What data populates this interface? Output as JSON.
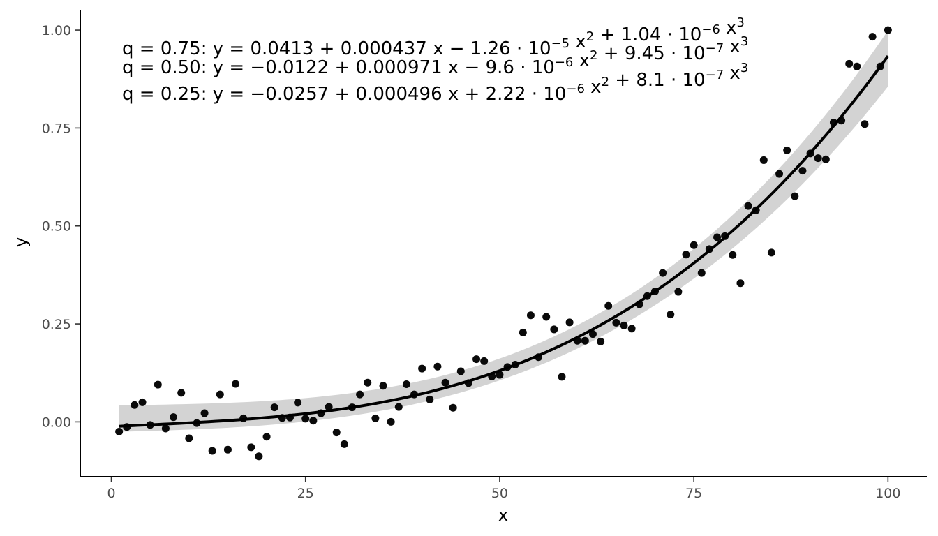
{
  "chart_data": {
    "type": "scatter",
    "title": "",
    "xlabel": "x",
    "ylabel": "y",
    "xlim": [
      -4,
      105
    ],
    "ylim": [
      -0.14,
      1.05
    ],
    "x_ticks": [
      0,
      25,
      50,
      75,
      100
    ],
    "x_tick_labels": [
      "0",
      "25",
      "50",
      "75",
      "100"
    ],
    "y_ticks": [
      0.0,
      0.25,
      0.5,
      0.75,
      1.0
    ],
    "y_tick_labels": [
      "0.00",
      "0.25",
      "0.50",
      "0.75",
      "1.00"
    ],
    "grid": false,
    "legend": "none",
    "colors": {
      "points": "#000000",
      "line": "#000000",
      "band": "#d3d3d3"
    },
    "annotations": [
      {
        "prefix": "q = 0.75: y = ",
        "terms": [
          {
            "c": "0.0413"
          },
          {
            "op": "+",
            "c": "0.000437",
            "v": " x"
          },
          {
            "op": "−",
            "c": "1.26",
            "exp10": "−5",
            "v": " x",
            "pow": "2"
          },
          {
            "op": "+",
            "c": "1.04",
            "exp10": "−6",
            "v": " x",
            "pow": "3"
          }
        ]
      },
      {
        "prefix": "q = 0.50: y = −",
        "terms": [
          {
            "c": "0.0122"
          },
          {
            "op": "+",
            "c": "0.000971",
            "v": " x"
          },
          {
            "op": "−",
            "c": "9.6",
            "exp10": "−6",
            "v": " x",
            "pow": "2"
          },
          {
            "op": "+",
            "c": "9.45",
            "exp10": "−7",
            "v": " x",
            "pow": "3"
          }
        ]
      },
      {
        "prefix": "q = 0.25: y = −",
        "terms": [
          {
            "c": "0.0257"
          },
          {
            "op": "+",
            "c": "0.000496",
            "v": " x"
          },
          {
            "op": "+",
            "c": "2.22",
            "exp10": "−6",
            "v": " x",
            "pow": "2"
          },
          {
            "op": "+",
            "c": "8.1",
            "exp10": "−7",
            "v": " x",
            "pow": "3"
          }
        ]
      }
    ],
    "series": [
      {
        "type": "scatter",
        "x": [
          1,
          2,
          3,
          4,
          5,
          6,
          7,
          8,
          9,
          10,
          11,
          12,
          13,
          14,
          15,
          16,
          17,
          18,
          19,
          20,
          21,
          22,
          23,
          24,
          25,
          26,
          27,
          28,
          29,
          30,
          31,
          32,
          33,
          34,
          35,
          36,
          37,
          38,
          39,
          40,
          41,
          42,
          43,
          44,
          45,
          46,
          47,
          48,
          49,
          50,
          51,
          52,
          53,
          54,
          55,
          56,
          57,
          58,
          59,
          60,
          61,
          62,
          63,
          64,
          65,
          66,
          67,
          68,
          69,
          70,
          71,
          72,
          73,
          74,
          75,
          76,
          77,
          78,
          79,
          80,
          81,
          82,
          83,
          84,
          85,
          86,
          87,
          88,
          89,
          90,
          91,
          92,
          93,
          94,
          95,
          96,
          97,
          98,
          99,
          100
        ],
        "y": [
          -0.025,
          -0.013,
          0.043,
          0.05,
          -0.008,
          0.095,
          -0.017,
          0.012,
          0.074,
          -0.042,
          -0.003,
          0.022,
          -0.074,
          0.07,
          -0.071,
          0.097,
          0.009,
          -0.065,
          -0.088,
          -0.038,
          0.037,
          0.01,
          0.011,
          0.049,
          0.008,
          0.003,
          0.022,
          0.038,
          -0.027,
          -0.057,
          0.037,
          0.07,
          0.1,
          0.009,
          0.092,
          0.0,
          0.038,
          0.096,
          0.07,
          0.136,
          0.057,
          0.141,
          0.1,
          0.036,
          0.129,
          0.099,
          0.16,
          0.155,
          0.116,
          0.12,
          0.14,
          0.146,
          0.228,
          0.272,
          0.165,
          0.268,
          0.236,
          0.115,
          0.254,
          0.207,
          0.207,
          0.224,
          0.205,
          0.296,
          0.253,
          0.246,
          0.238,
          0.3,
          0.321,
          0.333,
          0.38,
          0.274,
          0.332,
          0.427,
          0.451,
          0.38,
          0.441,
          0.471,
          0.474,
          0.426,
          0.354,
          0.551,
          0.54,
          0.668,
          0.432,
          0.633,
          0.693,
          0.576,
          0.641,
          0.685,
          0.673,
          0.67,
          0.764,
          0.769,
          0.914,
          0.907,
          0.76,
          0.983,
          0.907,
          1.0
        ]
      },
      {
        "type": "line",
        "name": "",
        "fit": "cubic",
        "coefficients": [
          -0.0122,
          0.000971,
          -9.6e-06,
          9.45e-07
        ],
        "x_range": [
          1,
          100
        ]
      },
      {
        "type": "band",
        "fit": "cubic",
        "x_range": [
          1,
          100
        ],
        "lower_coefficients": [
          -0.0257,
          0.000496,
          2.22e-06,
          8.1e-07
        ],
        "upper_coefficients": [
          0.0413,
          0.000437,
          -1.26e-05,
          1.04e-06
        ]
      }
    ]
  }
}
